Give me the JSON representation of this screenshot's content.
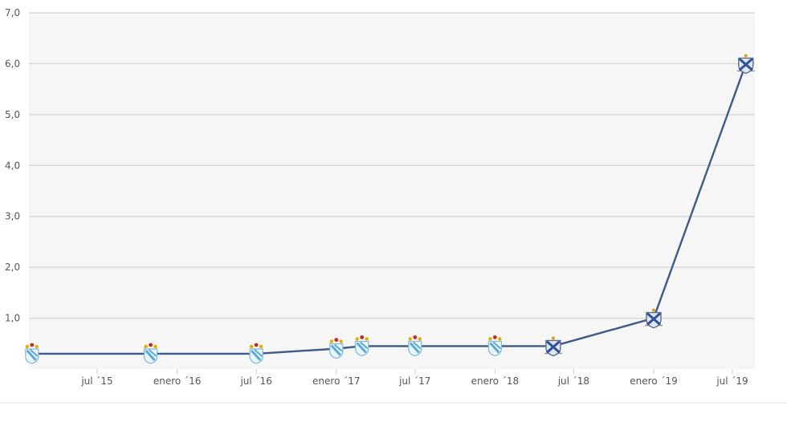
{
  "chart_data": {
    "type": "line",
    "title": "",
    "xlabel": "",
    "ylabel": "",
    "ylim": [
      0,
      7
    ],
    "grid": true,
    "legend": "none",
    "y_ticks": [
      "1,0",
      "2,0",
      "3,0",
      "4,0",
      "5,0",
      "6,0",
      "7,0"
    ],
    "x_ticks": [
      {
        "label": "jul ´15",
        "date": "2015-07-01"
      },
      {
        "label": "enero ´16",
        "date": "2016-01-01"
      },
      {
        "label": "jul ´16",
        "date": "2016-07-01"
      },
      {
        "label": "enero ´17",
        "date": "2017-01-01"
      },
      {
        "label": "jul ´17",
        "date": "2017-07-01"
      },
      {
        "label": "enero ´18",
        "date": "2018-01-01"
      },
      {
        "label": "jul ´18",
        "date": "2018-07-01"
      },
      {
        "label": "enero ´19",
        "date": "2019-01-01"
      },
      {
        "label": "jul ´19",
        "date": "2019-07-01"
      }
    ],
    "series": [
      {
        "color": "#3e5a86",
        "points": [
          {
            "x": "2015-02-01",
            "y": 0.3,
            "marker": "crest-sky"
          },
          {
            "x": "2015-11-01",
            "y": 0.3,
            "marker": "crest-sky"
          },
          {
            "x": "2016-07-01",
            "y": 0.3,
            "marker": "crest-sky"
          },
          {
            "x": "2017-01-01",
            "y": 0.4,
            "marker": "crest-sky"
          },
          {
            "x": "2017-03-01",
            "y": 0.45,
            "marker": "crest-sky"
          },
          {
            "x": "2017-07-01",
            "y": 0.45,
            "marker": "crest-sky"
          },
          {
            "x": "2018-01-01",
            "y": 0.45,
            "marker": "crest-sky"
          },
          {
            "x": "2018-05-15",
            "y": 0.45,
            "marker": "crest-blue"
          },
          {
            "x": "2019-01-01",
            "y": 1.0,
            "marker": "crest-blue"
          },
          {
            "x": "2019-08-01",
            "y": 6.0,
            "marker": "crest-blue"
          }
        ]
      }
    ]
  }
}
